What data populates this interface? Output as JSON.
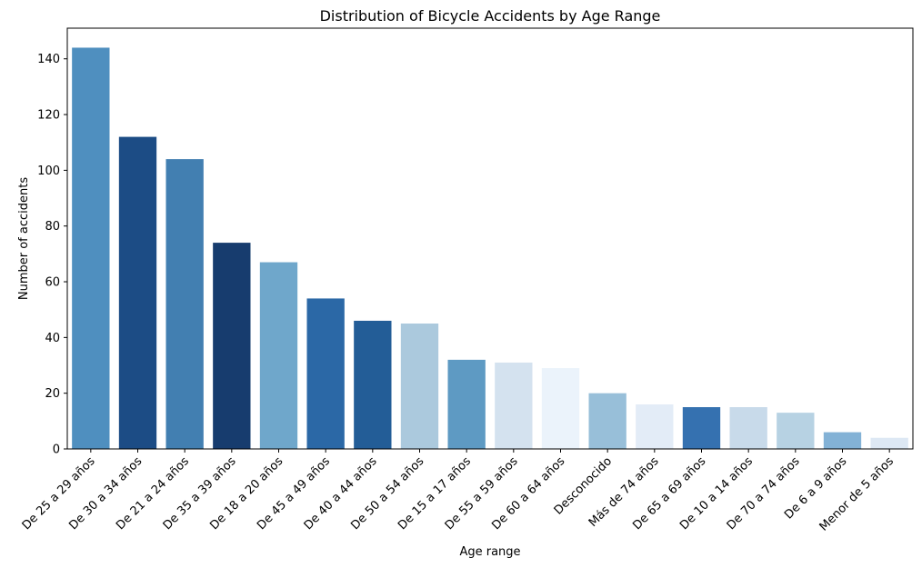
{
  "chart_data": {
    "type": "bar",
    "title": "Distribution of Bicycle Accidents by Age Range",
    "xlabel": "Age range",
    "ylabel": "Number of accidents",
    "ylim": [
      0,
      151
    ],
    "yticks": [
      0,
      20,
      40,
      60,
      80,
      100,
      120,
      140
    ],
    "grid": false,
    "categories": [
      "De 25 a 29 años",
      "De 30 a 34 años",
      "De 21 a 24 años",
      "De 35 a 39 años",
      "De 18 a 20 años",
      "De 45 a 49 años",
      "De 40 a 44 años",
      "De 50 a 54 años",
      "De 15 a 17 años",
      "De 55 a 59 años",
      "De 60 a 64 años",
      "Desconocido",
      "Más de 74 años",
      "De 65 a 69 años",
      "De 10 a 14 años",
      "De 70 a 74 años",
      "De 6 a 9 años",
      "Menor de 5 años"
    ],
    "values": [
      144,
      112,
      104,
      74,
      67,
      54,
      46,
      45,
      32,
      31,
      29,
      20,
      16,
      15,
      15,
      13,
      6,
      4
    ],
    "colors": [
      "#4f8fbf",
      "#1c4c85",
      "#427fb1",
      "#173c6e",
      "#6fa7cb",
      "#2b68a6",
      "#235d97",
      "#abc9dd",
      "#5e9ac3",
      "#d4e2ef",
      "#ebf3fb",
      "#98bfd9",
      "#e3ecf7",
      "#3571b0",
      "#c8daea",
      "#b7d2e3",
      "#83b2d6",
      "#dde8f4"
    ]
  }
}
